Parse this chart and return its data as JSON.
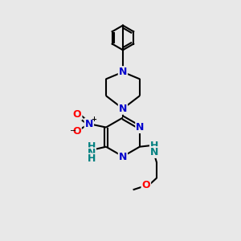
{
  "bg_color": "#e8e8e8",
  "bond_color": "#000000",
  "bond_width": 1.5,
  "atom_colors": {
    "N": "#0000cc",
    "O": "#ff0000",
    "C": "#000000",
    "H": "#008080"
  },
  "font_size": 9.0,
  "fig_width": 3.0,
  "fig_height": 3.0
}
